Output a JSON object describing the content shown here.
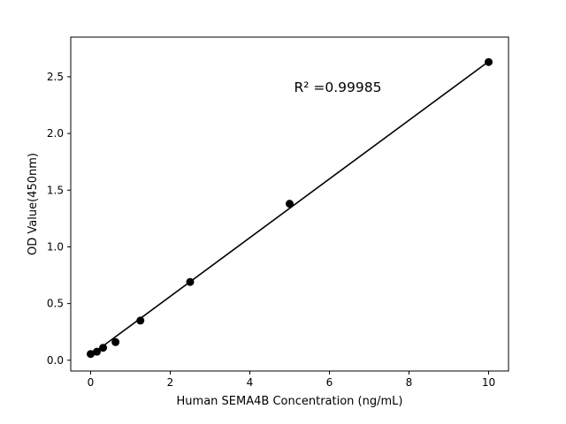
{
  "figure": {
    "background": "#ffffff"
  },
  "chart_data": {
    "type": "scatter",
    "title": "",
    "xlabel": "Human SEMA4B Concentration (ng/mL)",
    "ylabel": "OD Value(450nm)",
    "annotation": "R² =0.99985",
    "x": [
      0,
      0.156,
      0.3125,
      0.625,
      1.25,
      2.5,
      5,
      10
    ],
    "y": [
      0.055,
      0.075,
      0.11,
      0.16,
      0.35,
      0.69,
      1.38,
      2.63
    ],
    "fit_line": {
      "x": [
        0,
        10
      ],
      "y": [
        0.045,
        2.635
      ]
    },
    "xlim": [
      -0.5,
      10.5
    ],
    "ylim": [
      -0.095,
      2.85
    ],
    "xticks": [
      "0",
      "2",
      "4",
      "6",
      "8",
      "10"
    ],
    "xtick_values": [
      0,
      2,
      4,
      6,
      8,
      10
    ],
    "yticks": [
      "0.0",
      "0.5",
      "1.0",
      "1.5",
      "2.0",
      "2.5"
    ],
    "ytick_values": [
      0,
      0.5,
      1,
      1.5,
      2,
      2.5
    ],
    "grid": false,
    "legend": null,
    "marker_color": "#000000",
    "line_color": "#000000",
    "axis_color": "#000000"
  }
}
